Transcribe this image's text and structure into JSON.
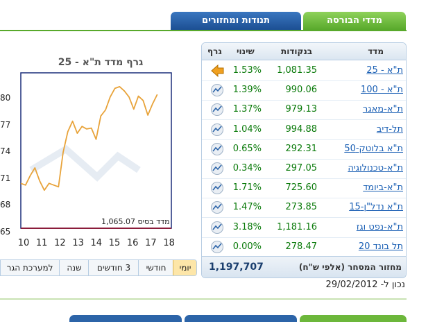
{
  "tabs": {
    "active": "מדדי הבורסה",
    "other": "תנודות ומחזורים"
  },
  "table": {
    "headers": {
      "index": "מדד",
      "points": "בנקודות",
      "change": "שינוי",
      "chart": "גרף"
    },
    "rows": [
      {
        "name": "ת\"א - 25",
        "points": "1,081.35",
        "change": "1.53%",
        "icon": "arrow-left-icon"
      },
      {
        "name": "ת\"א - 100",
        "points": "990.06",
        "change": "1.39%",
        "icon": "chart-icon"
      },
      {
        "name": "ת\"א-מאגר",
        "points": "979.13",
        "change": "1.37%",
        "icon": "chart-icon"
      },
      {
        "name": "תל-דיב",
        "points": "994.88",
        "change": "1.04%",
        "icon": "chart-icon"
      },
      {
        "name": "ת\"א בלוטק-50",
        "points": "292.31",
        "change": "0.65%",
        "icon": "chart-icon"
      },
      {
        "name": "ת\"א-טכנולוגיה",
        "points": "297.05",
        "change": "0.34%",
        "icon": "chart-icon"
      },
      {
        "name": "ת\"א-ביומד",
        "points": "725.60",
        "change": "1.71%",
        "icon": "chart-icon"
      },
      {
        "name": "ת\"א נדל\"ן-15",
        "points": "273.85",
        "change": "1.47%",
        "icon": "chart-icon"
      },
      {
        "name": "ת\"א-נפט וגז",
        "points": "1,181.16",
        "change": "3.18%",
        "icon": "chart-icon"
      },
      {
        "name": "תל בונד 20",
        "points": "278.47",
        "change": "0.00%",
        "icon": "chart-icon"
      }
    ],
    "footer": {
      "label": "מחזור המסחר (אלפי ש\"ח)",
      "value": "1,197,707"
    }
  },
  "updated": "נכון ל- 29/02/2012",
  "chart": {
    "title": "גרף מדד ת\"א - 25",
    "base_label": "מדד בסיס 1,065.07",
    "periods": [
      "יומי",
      "חודשי",
      "3 חודשים",
      "שנה",
      "למערכת הגר"
    ],
    "active_period": "יומי"
  },
  "colors": {
    "green": "#58a92b",
    "blue": "#1c4f93",
    "line": "#e8a33a"
  },
  "chart_data": {
    "type": "line",
    "title": "גרף מדד ת\"א - 25",
    "xlabel": "",
    "ylabel": "",
    "x_ticks": [
      "10",
      "11",
      "12",
      "13",
      "14",
      "15",
      "16",
      "17",
      "18"
    ],
    "y_ticks": [
      "80",
      "77",
      "74",
      "71",
      "68",
      "65"
    ],
    "x_range": [
      10,
      18
    ],
    "y_range": [
      1065,
      1083
    ],
    "series": [
      {
        "x": [
          10.0,
          10.25,
          10.5,
          10.75,
          11.0,
          11.25,
          11.5,
          11.75,
          12.0,
          12.25,
          12.5,
          12.75,
          13.0,
          13.25,
          13.5,
          13.75,
          14.0,
          14.25,
          14.5,
          14.75,
          15.0,
          15.25,
          15.5,
          15.75,
          16.0,
          16.25,
          16.5,
          16.75,
          17.0,
          17.25
        ],
        "y": [
          1070.2,
          1070.0,
          1071.1,
          1072.0,
          1070.5,
          1069.4,
          1070.2,
          1070.0,
          1069.8,
          1073.8,
          1076.2,
          1077.4,
          1076.0,
          1076.8,
          1076.5,
          1076.6,
          1075.3,
          1078.0,
          1078.7,
          1080.2,
          1081.2,
          1081.4,
          1080.9,
          1080.2,
          1078.8,
          1080.3,
          1079.8,
          1078.1,
          1079.4,
          1080.5
        ]
      }
    ]
  }
}
